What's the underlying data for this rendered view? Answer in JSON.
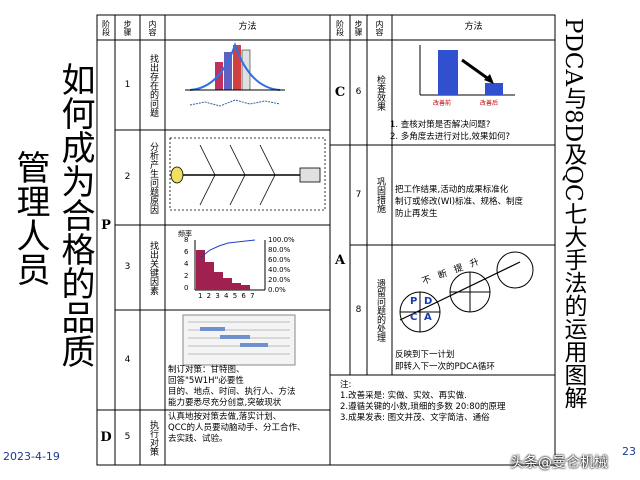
{
  "title": {
    "col1": "如何成为合格的品质",
    "col2": "管理人员"
  },
  "side_title": "PDCA与8D及QC七大手法的运用图解",
  "table": {
    "headers": [
      "阶段",
      "步骤",
      "内容",
      "方法"
    ],
    "phases": [
      "P",
      "D",
      "C",
      "A"
    ],
    "left_rows": [
      {
        "step": "1",
        "content": "找出存在的问题"
      },
      {
        "step": "2",
        "content": "分析产生问题原因"
      },
      {
        "step": "3",
        "content": "找出关键因素",
        "chart": {
          "y_label": "频率",
          "yticks": [
            "8",
            "6",
            "4",
            "2",
            "0"
          ],
          "y2ticks": [
            "100.0%",
            "80.0%",
            "60.0%",
            "40.0%",
            "20.0%",
            "0.0%"
          ],
          "xticks": "1 2 3 4 5 6 7"
        }
      },
      {
        "step": "4",
        "method": [
          "制订对策：甘特图、",
          "回答\"5W1H\"必要性",
          "目的、地点、时间、执行人、方法",
          "能力要悉尽充分创意,突破现状"
        ]
      },
      {
        "step": "5",
        "content": "执行对策",
        "method": [
          "认真地按对策去做,落实计划、",
          "QCC的人员要动脑动手、分工合作、",
          "去实践、试验。"
        ]
      }
    ],
    "right_rows": [
      {
        "step": "6",
        "content": "检查效果",
        "chart_labels": [
          "改善前",
          "改善后"
        ],
        "method": [
          "1. 查核对策是否解决问题?",
          "2. 多角度去进行对比,效果如何?"
        ]
      },
      {
        "step": "7",
        "content": "巩固措施",
        "method": [
          "把工作结果,活动的成果标准化",
          "制订或修改(WI)标准、规格、制度",
          "防止再发生"
        ]
      },
      {
        "step": "8",
        "content": "遗留问题的处理",
        "diagram": {
          "caption": "不断提升",
          "letters": [
            "P",
            "D",
            "C",
            "A"
          ]
        },
        "method": [
          "反映到下一计划",
          "即转入下一次的PDCA循环"
        ]
      }
    ],
    "notes": [
      "注:",
      "1.改善采是: 实做、实效、再实做.",
      "2.遵循关键的小数,琐细的多数 20:80的原理",
      "3.成果发表: 图文并茂、文字简洁、通俗"
    ]
  },
  "footer": {
    "date": "2023-4-19",
    "page": "23",
    "watermark": "头条@曼仑机械"
  }
}
